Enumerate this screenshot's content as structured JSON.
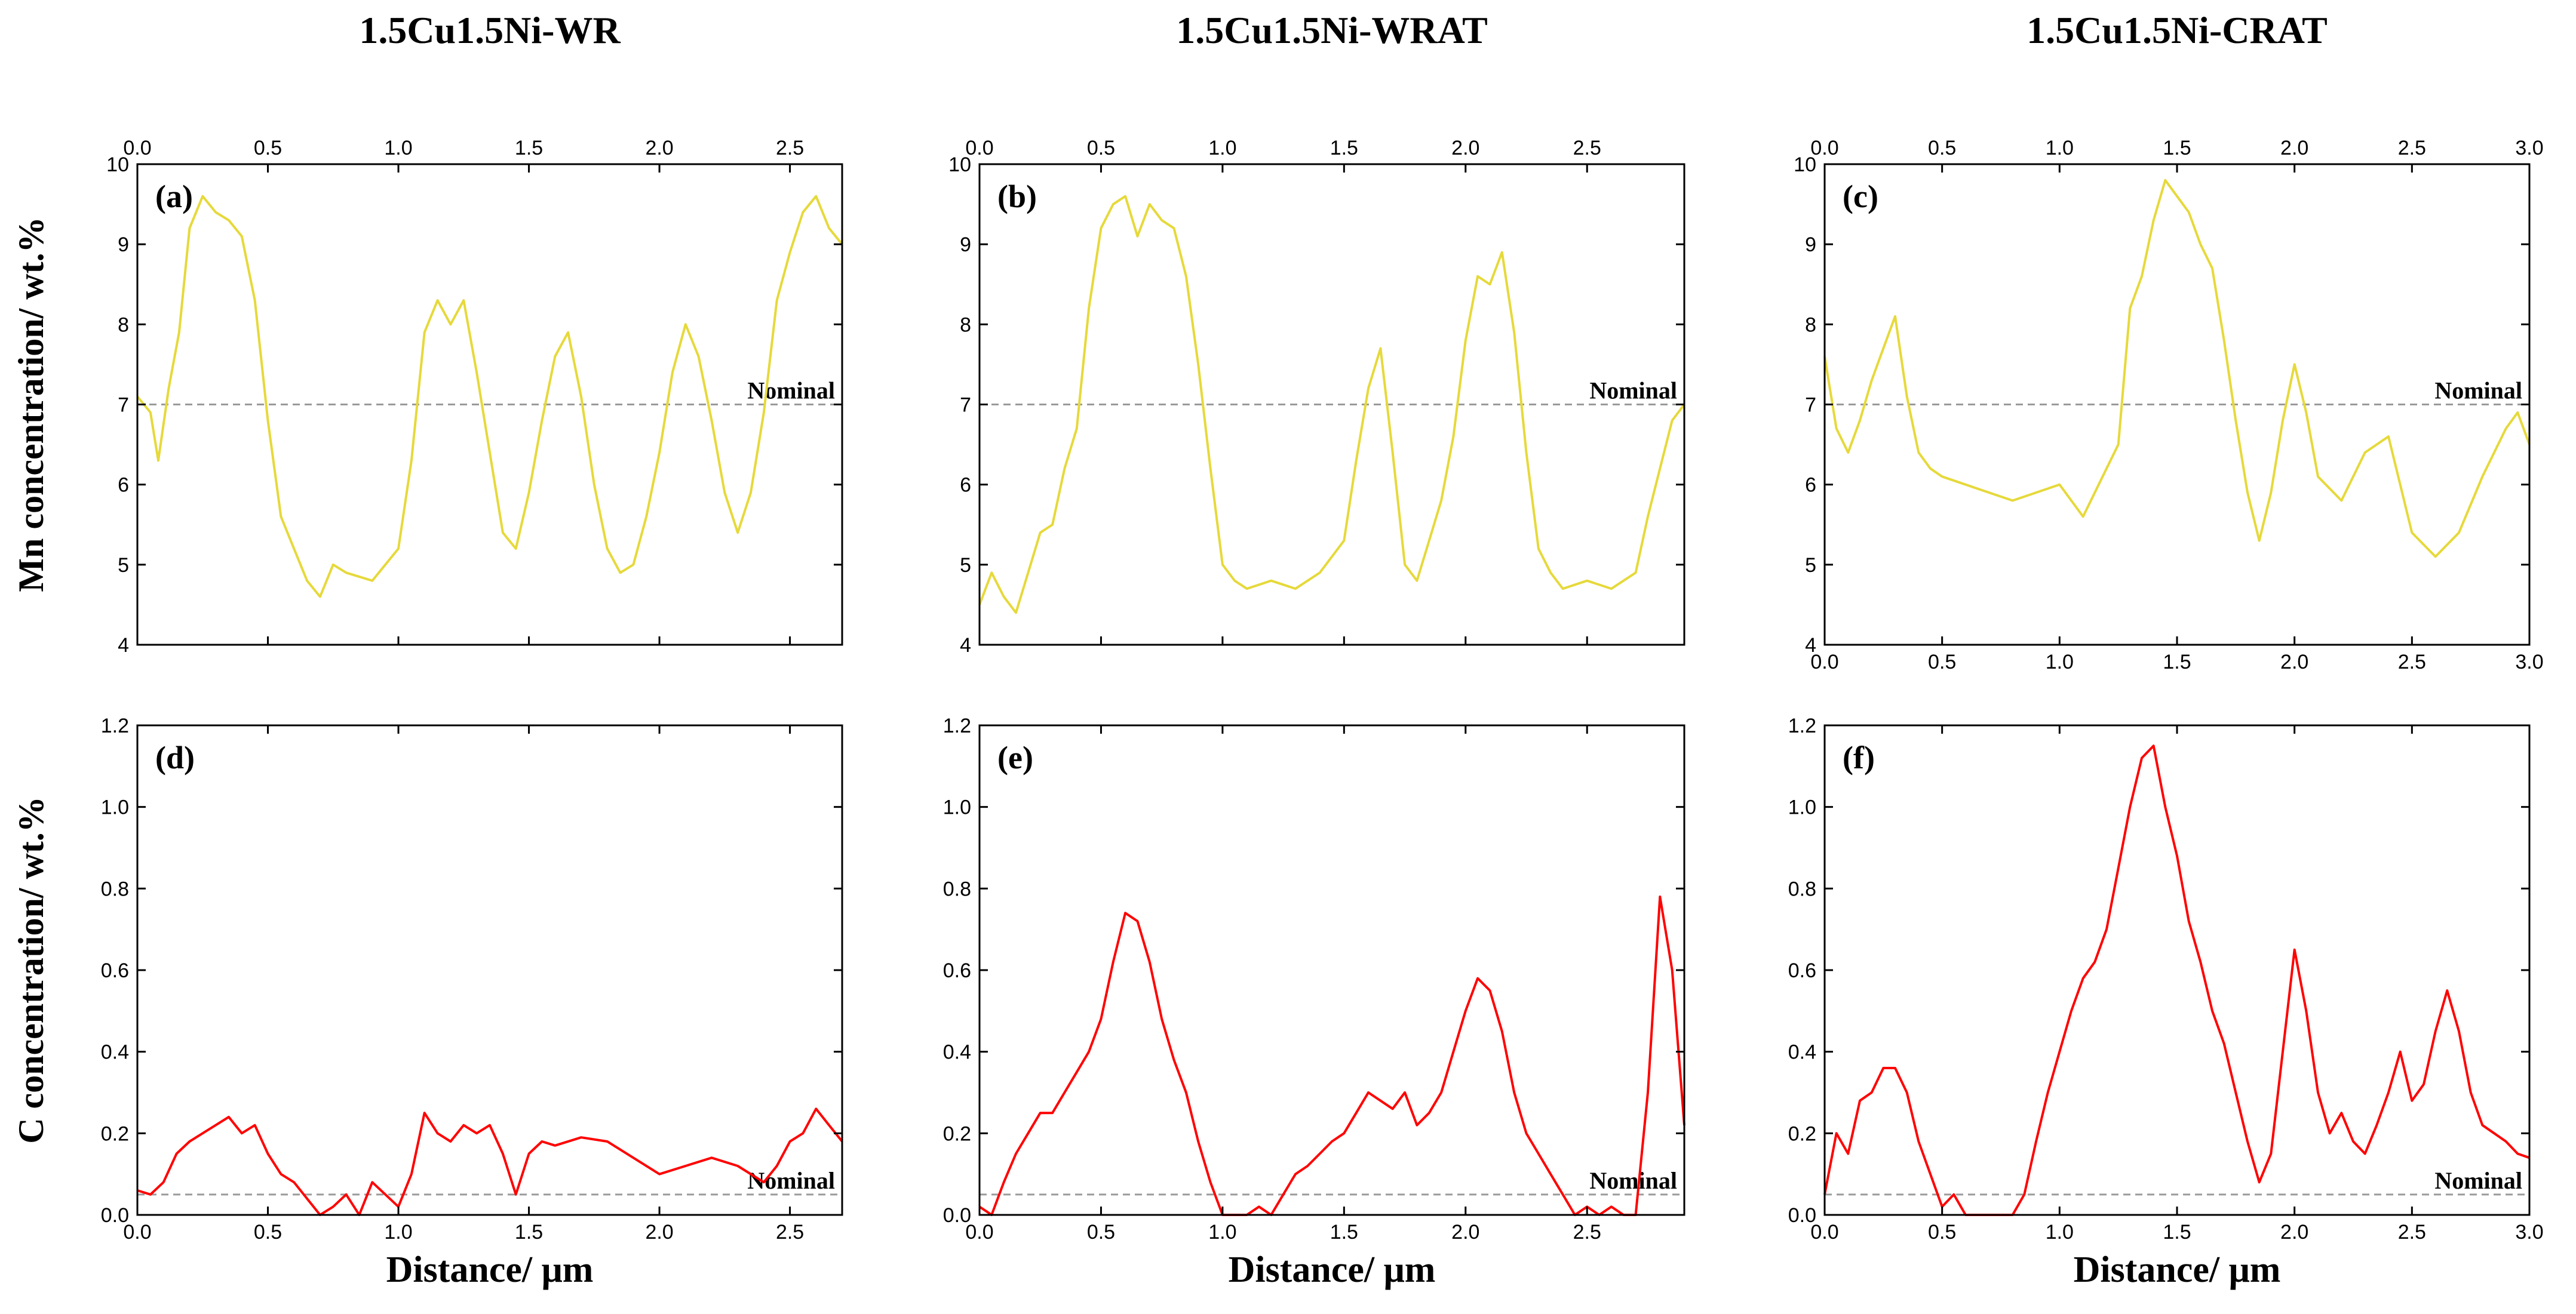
{
  "figure": {
    "column_titles": [
      "1.5Cu1.5Ni-WR",
      "1.5Cu1.5Ni-WRAT",
      "1.5Cu1.5Ni-CRAT"
    ],
    "row_ylabels": [
      "Mn concentration/ wt.%",
      "C concentration/ wt.%"
    ],
    "xlabel": "Distance/ μm"
  },
  "chart_data": [
    {
      "id": "a",
      "panel_label": "(a)",
      "type": "line",
      "element": "Mn",
      "ylabel": "Mn concentration/ wt.%",
      "xlabel": "",
      "xlim": [
        0,
        2.7
      ],
      "ylim": [
        4,
        10
      ],
      "xticks": [
        "0.0",
        "0.5",
        "1.0",
        "1.5",
        "2.0",
        "2.5"
      ],
      "yticks": [
        "4",
        "5",
        "6",
        "7",
        "8",
        "9",
        "10"
      ],
      "top_axis_labels": true,
      "bottom_axis_labels": false,
      "nominal": 7,
      "nominal_label": "Nominal",
      "color": "#e6d93a",
      "x": [
        0.0,
        0.05,
        0.08,
        0.12,
        0.16,
        0.2,
        0.25,
        0.3,
        0.35,
        0.4,
        0.45,
        0.5,
        0.55,
        0.6,
        0.65,
        0.7,
        0.75,
        0.8,
        0.9,
        1.0,
        1.05,
        1.1,
        1.15,
        1.2,
        1.25,
        1.3,
        1.35,
        1.4,
        1.45,
        1.5,
        1.55,
        1.6,
        1.65,
        1.7,
        1.75,
        1.8,
        1.85,
        1.9,
        1.95,
        2.0,
        2.05,
        2.1,
        2.15,
        2.2,
        2.25,
        2.3,
        2.35,
        2.4,
        2.45,
        2.5,
        2.55,
        2.6,
        2.65,
        2.7
      ],
      "y": [
        7.1,
        6.9,
        6.3,
        7.2,
        7.9,
        9.2,
        9.6,
        9.4,
        9.3,
        9.1,
        8.3,
        6.8,
        5.6,
        5.2,
        4.8,
        4.6,
        5.0,
        4.9,
        4.8,
        5.2,
        6.3,
        7.9,
        8.3,
        8.0,
        8.3,
        7.4,
        6.4,
        5.4,
        5.2,
        5.9,
        6.8,
        7.6,
        7.9,
        7.1,
        6.0,
        5.2,
        4.9,
        5.0,
        5.6,
        6.4,
        7.4,
        8.0,
        7.6,
        6.8,
        5.9,
        5.4,
        5.9,
        6.9,
        8.3,
        8.9,
        9.4,
        9.6,
        9.2,
        9.0
      ]
    },
    {
      "id": "b",
      "panel_label": "(b)",
      "type": "line",
      "element": "Mn",
      "ylabel": "",
      "xlabel": "",
      "xlim": [
        0,
        2.9
      ],
      "ylim": [
        4,
        10
      ],
      "xticks": [
        "0.0",
        "0.5",
        "1.0",
        "1.5",
        "2.0",
        "2.5"
      ],
      "yticks": [
        "4",
        "5",
        "6",
        "7",
        "8",
        "9",
        "10"
      ],
      "top_axis_labels": true,
      "bottom_axis_labels": false,
      "nominal": 7,
      "nominal_label": "Nominal",
      "color": "#e6d93a",
      "x": [
        0.0,
        0.05,
        0.1,
        0.15,
        0.2,
        0.25,
        0.3,
        0.35,
        0.4,
        0.45,
        0.5,
        0.55,
        0.6,
        0.65,
        0.7,
        0.75,
        0.8,
        0.85,
        0.9,
        0.95,
        1.0,
        1.05,
        1.1,
        1.2,
        1.3,
        1.4,
        1.5,
        1.55,
        1.6,
        1.65,
        1.7,
        1.75,
        1.8,
        1.85,
        1.9,
        1.95,
        2.0,
        2.05,
        2.1,
        2.15,
        2.2,
        2.25,
        2.3,
        2.35,
        2.4,
        2.5,
        2.6,
        2.7,
        2.75,
        2.8,
        2.85,
        2.9
      ],
      "y": [
        4.5,
        4.9,
        4.6,
        4.4,
        4.9,
        5.4,
        5.5,
        6.2,
        6.7,
        8.2,
        9.2,
        9.5,
        9.6,
        9.1,
        9.5,
        9.3,
        9.2,
        8.6,
        7.5,
        6.2,
        5.0,
        4.8,
        4.7,
        4.8,
        4.7,
        4.9,
        5.3,
        6.3,
        7.2,
        7.7,
        6.4,
        5.0,
        4.8,
        5.3,
        5.8,
        6.6,
        7.8,
        8.6,
        8.5,
        8.9,
        7.9,
        6.4,
        5.2,
        4.9,
        4.7,
        4.8,
        4.7,
        4.9,
        5.6,
        6.2,
        6.8,
        7.0
      ]
    },
    {
      "id": "c",
      "panel_label": "(c)",
      "type": "line",
      "element": "Mn",
      "ylabel": "",
      "xlabel": "",
      "xlim": [
        0,
        3.0
      ],
      "ylim": [
        4,
        10
      ],
      "xticks": [
        "0.0",
        "0.5",
        "1.0",
        "1.5",
        "2.0",
        "2.5",
        "3.0"
      ],
      "yticks": [
        "4",
        "5",
        "6",
        "7",
        "8",
        "9",
        "10"
      ],
      "top_axis_labels": true,
      "bottom_axis_labels": true,
      "nominal": 7,
      "nominal_label": "Nominal",
      "color": "#e6d93a",
      "x": [
        0.0,
        0.05,
        0.1,
        0.15,
        0.2,
        0.25,
        0.3,
        0.35,
        0.4,
        0.45,
        0.5,
        0.6,
        0.7,
        0.8,
        0.9,
        1.0,
        1.1,
        1.2,
        1.25,
        1.3,
        1.35,
        1.4,
        1.45,
        1.5,
        1.55,
        1.6,
        1.65,
        1.7,
        1.75,
        1.8,
        1.85,
        1.9,
        1.95,
        2.0,
        2.05,
        2.1,
        2.2,
        2.3,
        2.4,
        2.5,
        2.6,
        2.7,
        2.8,
        2.9,
        2.95,
        3.0
      ],
      "y": [
        7.6,
        6.7,
        6.4,
        6.8,
        7.3,
        7.7,
        8.1,
        7.1,
        6.4,
        6.2,
        6.1,
        6.0,
        5.9,
        5.8,
        5.9,
        6.0,
        5.6,
        6.2,
        6.5,
        8.2,
        8.6,
        9.3,
        9.8,
        9.6,
        9.4,
        9.0,
        8.7,
        7.8,
        6.8,
        5.9,
        5.3,
        5.9,
        6.8,
        7.5,
        6.9,
        6.1,
        5.8,
        6.4,
        6.6,
        5.4,
        5.1,
        5.4,
        6.1,
        6.7,
        6.9,
        6.5
      ]
    },
    {
      "id": "d",
      "panel_label": "(d)",
      "type": "line",
      "element": "C",
      "ylabel": "C concentration/ wt.%",
      "xlabel": "Distance/ μm",
      "xlim": [
        0,
        2.7
      ],
      "ylim": [
        0,
        1.2
      ],
      "xticks": [
        "0.0",
        "0.5",
        "1.0",
        "1.5",
        "2.0",
        "2.5"
      ],
      "yticks": [
        "0.0",
        "0.2",
        "0.4",
        "0.6",
        "0.8",
        "1.0",
        "1.2"
      ],
      "top_axis_labels": false,
      "bottom_axis_labels": true,
      "nominal": 0.05,
      "nominal_label": "Nominal",
      "color": "#ff0000",
      "x": [
        0.0,
        0.05,
        0.1,
        0.15,
        0.2,
        0.25,
        0.3,
        0.35,
        0.4,
        0.45,
        0.5,
        0.55,
        0.6,
        0.65,
        0.7,
        0.75,
        0.8,
        0.85,
        0.9,
        0.95,
        1.0,
        1.05,
        1.1,
        1.15,
        1.2,
        1.25,
        1.3,
        1.35,
        1.4,
        1.45,
        1.5,
        1.55,
        1.6,
        1.7,
        1.8,
        1.9,
        2.0,
        2.1,
        2.2,
        2.3,
        2.4,
        2.45,
        2.5,
        2.55,
        2.6,
        2.65,
        2.7
      ],
      "y": [
        0.06,
        0.05,
        0.08,
        0.15,
        0.18,
        0.2,
        0.22,
        0.24,
        0.2,
        0.22,
        0.15,
        0.1,
        0.08,
        0.04,
        0.0,
        0.02,
        0.05,
        0.0,
        0.08,
        0.05,
        0.02,
        0.1,
        0.25,
        0.2,
        0.18,
        0.22,
        0.2,
        0.22,
        0.15,
        0.05,
        0.15,
        0.18,
        0.17,
        0.19,
        0.18,
        0.14,
        0.1,
        0.12,
        0.14,
        0.12,
        0.08,
        0.12,
        0.18,
        0.2,
        0.26,
        0.22,
        0.18
      ]
    },
    {
      "id": "e",
      "panel_label": "(e)",
      "type": "line",
      "element": "C",
      "ylabel": "",
      "xlabel": "Distance/ μm",
      "xlim": [
        0,
        2.9
      ],
      "ylim": [
        0,
        1.2
      ],
      "xticks": [
        "0.0",
        "0.5",
        "1.0",
        "1.5",
        "2.0",
        "2.5"
      ],
      "yticks": [
        "0.0",
        "0.2",
        "0.4",
        "0.6",
        "0.8",
        "1.0",
        "1.2"
      ],
      "top_axis_labels": false,
      "bottom_axis_labels": true,
      "nominal": 0.05,
      "nominal_label": "Nominal",
      "color": "#ff0000",
      "x": [
        0.0,
        0.05,
        0.1,
        0.15,
        0.2,
        0.25,
        0.3,
        0.35,
        0.4,
        0.45,
        0.5,
        0.55,
        0.6,
        0.65,
        0.7,
        0.75,
        0.8,
        0.85,
        0.9,
        0.95,
        1.0,
        1.05,
        1.1,
        1.15,
        1.2,
        1.25,
        1.3,
        1.35,
        1.4,
        1.45,
        1.5,
        1.55,
        1.6,
        1.65,
        1.7,
        1.75,
        1.8,
        1.85,
        1.9,
        1.95,
        2.0,
        2.05,
        2.1,
        2.15,
        2.2,
        2.25,
        2.3,
        2.35,
        2.4,
        2.45,
        2.5,
        2.55,
        2.6,
        2.65,
        2.7,
        2.75,
        2.8,
        2.85,
        2.9
      ],
      "y": [
        0.02,
        0.0,
        0.08,
        0.15,
        0.2,
        0.25,
        0.25,
        0.3,
        0.35,
        0.4,
        0.48,
        0.62,
        0.74,
        0.72,
        0.62,
        0.48,
        0.38,
        0.3,
        0.18,
        0.08,
        0.0,
        0.0,
        0.0,
        0.02,
        0.0,
        0.05,
        0.1,
        0.12,
        0.15,
        0.18,
        0.2,
        0.25,
        0.3,
        0.28,
        0.26,
        0.3,
        0.22,
        0.25,
        0.3,
        0.4,
        0.5,
        0.58,
        0.55,
        0.45,
        0.3,
        0.2,
        0.15,
        0.1,
        0.05,
        0.0,
        0.02,
        0.0,
        0.02,
        0.0,
        0.0,
        0.3,
        0.78,
        0.6,
        0.22
      ]
    },
    {
      "id": "f",
      "panel_label": "(f)",
      "type": "line",
      "element": "C",
      "ylabel": "",
      "xlabel": "Distance/ μm",
      "xlim": [
        0,
        3.0
      ],
      "ylim": [
        0,
        1.2
      ],
      "xticks": [
        "0.0",
        "0.5",
        "1.0",
        "1.5",
        "2.0",
        "2.5",
        "3.0"
      ],
      "yticks": [
        "0.0",
        "0.2",
        "0.4",
        "0.6",
        "0.8",
        "1.0",
        "1.2"
      ],
      "top_axis_labels": false,
      "bottom_axis_labels": true,
      "nominal": 0.05,
      "nominal_label": "Nominal",
      "color": "#ff0000",
      "x": [
        0.0,
        0.05,
        0.1,
        0.15,
        0.2,
        0.25,
        0.3,
        0.35,
        0.4,
        0.45,
        0.5,
        0.55,
        0.6,
        0.65,
        0.7,
        0.75,
        0.8,
        0.85,
        0.9,
        0.95,
        1.0,
        1.05,
        1.1,
        1.15,
        1.2,
        1.25,
        1.3,
        1.35,
        1.4,
        1.45,
        1.5,
        1.55,
        1.6,
        1.65,
        1.7,
        1.75,
        1.8,
        1.85,
        1.9,
        1.95,
        2.0,
        2.05,
        2.1,
        2.15,
        2.2,
        2.25,
        2.3,
        2.35,
        2.4,
        2.45,
        2.5,
        2.55,
        2.6,
        2.65,
        2.7,
        2.75,
        2.8,
        2.85,
        2.9,
        2.95,
        3.0
      ],
      "y": [
        0.05,
        0.2,
        0.15,
        0.28,
        0.3,
        0.36,
        0.36,
        0.3,
        0.18,
        0.1,
        0.02,
        0.05,
        0.0,
        0.0,
        0.0,
        0.0,
        0.0,
        0.05,
        0.18,
        0.3,
        0.4,
        0.5,
        0.58,
        0.62,
        0.7,
        0.85,
        1.0,
        1.12,
        1.15,
        1.0,
        0.88,
        0.72,
        0.62,
        0.5,
        0.42,
        0.3,
        0.18,
        0.08,
        0.15,
        0.4,
        0.65,
        0.5,
        0.3,
        0.2,
        0.25,
        0.18,
        0.15,
        0.22,
        0.3,
        0.4,
        0.28,
        0.32,
        0.45,
        0.55,
        0.45,
        0.3,
        0.22,
        0.2,
        0.18,
        0.15,
        0.14
      ]
    }
  ]
}
